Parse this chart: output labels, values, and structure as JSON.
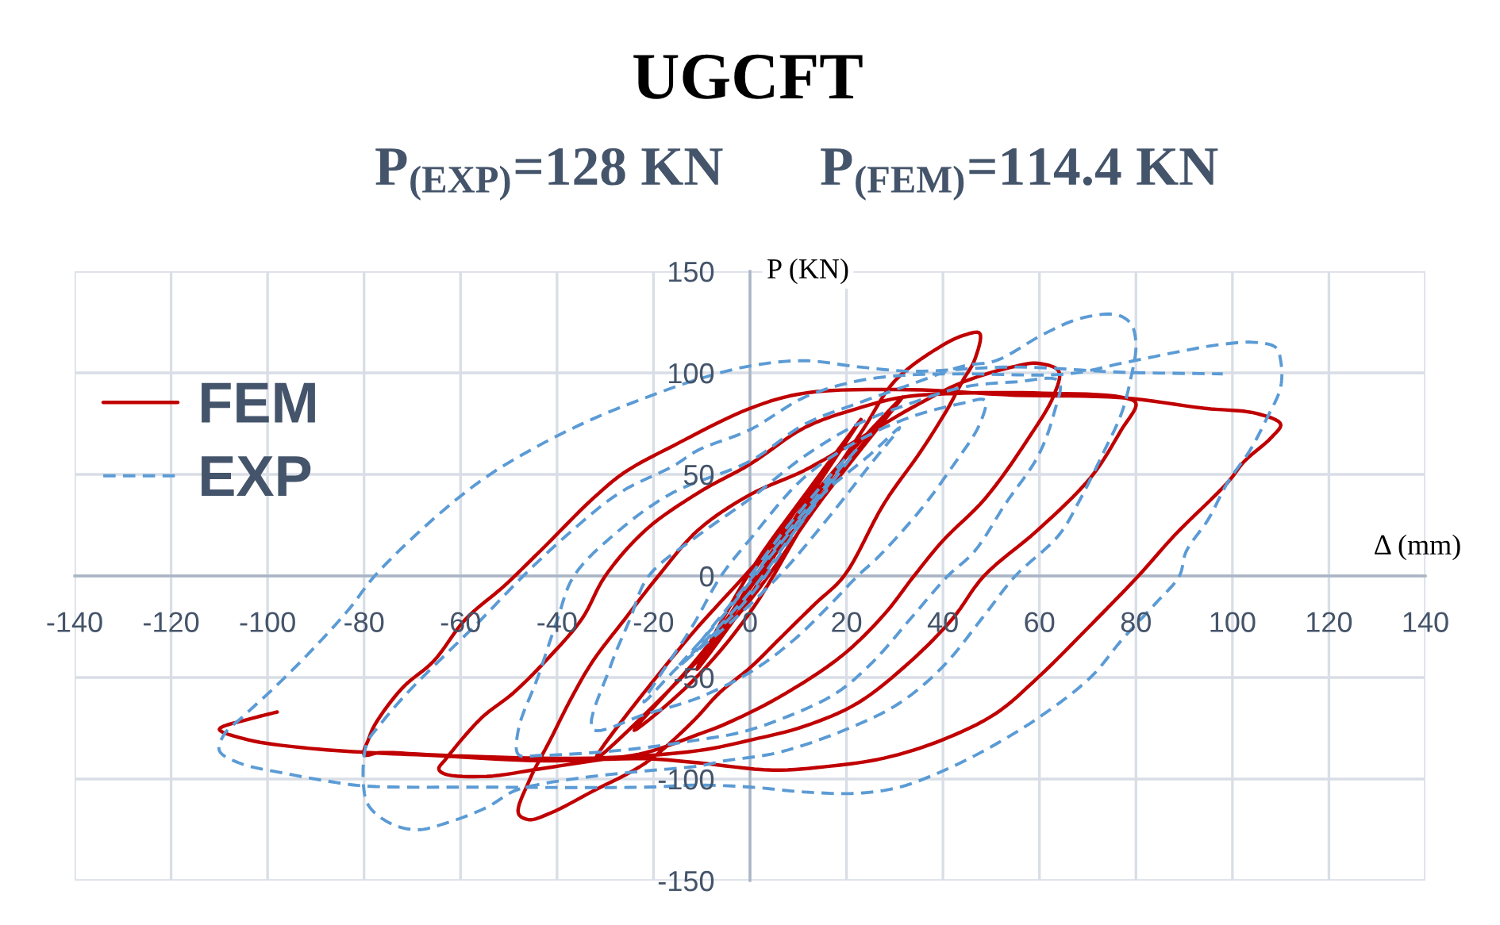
{
  "chart_data": {
    "type": "line",
    "title": "UGCFT",
    "subtitle": "P$_{(EXP)}$=128 KN       P$_{(FEM)}$=114.4 KN",
    "xlabel": "Δ (mm)",
    "ylabel": "P (KN)",
    "series": [
      {
        "name": "FEM",
        "color": "#c00000",
        "line_style": "solid",
        "x": [
          0,
          10,
          23,
          12,
          0,
          -11,
          0,
          12,
          23,
          10,
          0,
          -11,
          0,
          15,
          31.6,
          15,
          0,
          -12,
          -24,
          -10,
          5,
          20,
          31.6,
          15,
          0,
          -15,
          -32,
          -14,
          0,
          14.6,
          23.4,
          30,
          38.8,
          44.3,
          47.6,
          46.5,
          44.3,
          41,
          35.5,
          27.8,
          19.5,
          13.5,
          5.8,
          0.3,
          -6.3,
          -12,
          -21.6,
          -32.6,
          -41.4,
          -45.8,
          -48,
          -45.8,
          -41.4,
          -37,
          -32.6,
          -26,
          -19,
          -10.7,
          0,
          11.3,
          22.3,
          33.3,
          44.3,
          55.3,
          59.7,
          64,
          63,
          57.5,
          48.7,
          40,
          34,
          27.8,
          19,
          5.8,
          -5.2,
          -10.7,
          -21.6,
          -32.6,
          -43.6,
          -54.6,
          -63.4,
          -64.5,
          -63,
          -55.7,
          -49,
          -41.4,
          -34.8,
          -30,
          -21.6,
          -10.7,
          0,
          11.3,
          22.3,
          31.6,
          44,
          60.8,
          77,
          80,
          77,
          70.7,
          59.7,
          48.5,
          42,
          33.3,
          22.3,
          11.3,
          0.3,
          -10.7,
          -32.6,
          -63,
          -76.6,
          -80,
          -79,
          -77.7,
          -72,
          -65.6,
          -59,
          -51,
          -43.6,
          -32.6,
          -26,
          -16,
          0,
          11.3,
          33,
          55,
          77,
          94,
          105,
          110,
          108,
          102.5,
          99,
          88,
          80.5,
          70.7,
          59.7,
          50.9,
          39.9,
          27.8,
          16.8,
          4.7,
          -10.7,
          -21.6,
          -43.6,
          -65.6,
          -78.8,
          -93,
          -104,
          -110,
          -103,
          -98
        ],
        "values": [
          0,
          34,
          77,
          42,
          2,
          -46,
          -6,
          38,
          77,
          30,
          -10,
          -46,
          -4,
          45,
          88,
          40,
          -18,
          -52,
          -76,
          -38,
          10,
          55,
          88,
          38,
          -12,
          -52,
          -90,
          -34,
          3,
          42,
          72,
          96,
          112,
          118.5,
          119.5,
          106,
          97,
          82.5,
          61.7,
          35.7,
          0,
          -13.7,
          -31.7,
          -44.6,
          -57.5,
          -72,
          -92,
          -106,
          -116.8,
          -120,
          -117,
          -101,
          -80.7,
          -60,
          -42,
          -21.4,
          0,
          22.7,
          40,
          52,
          67,
          82.5,
          95.6,
          103.4,
          104.7,
          100.8,
          89,
          67,
          38,
          17.4,
          0,
          -19,
          -39.4,
          -60,
          -73,
          -78,
          -87,
          -91,
          -95,
          -98.7,
          -97.4,
          -95,
          -90,
          -70,
          -57.5,
          -39.4,
          -21,
          0,
          22.7,
          41,
          55,
          73,
          82.5,
          88,
          90,
          90,
          88,
          85,
          72,
          48.7,
          22.7,
          0,
          -21,
          -42,
          -62.6,
          -74,
          -80.7,
          -86,
          -89.7,
          -88.4,
          -87,
          -88,
          -80,
          -73,
          -55,
          -42,
          -21.4,
          -5,
          12,
          38,
          51,
          64,
          82.5,
          90,
          91.7,
          89,
          87.8,
          82.6,
          80,
          74.7,
          68,
          56.5,
          46,
          20,
          0,
          -24,
          -50,
          -67.8,
          -80.7,
          -89.7,
          -93.6,
          -95.6,
          -92,
          -90,
          -91,
          -88.4,
          -87,
          -84.5,
          -80.7,
          -75.5,
          -70,
          -67
        ]
      },
      {
        "name": "EXP",
        "color": "#5b9bd5",
        "line_style": "dashed",
        "x": [
          0,
          8,
          20,
          8,
          0,
          -12,
          0,
          10,
          22,
          10,
          0,
          -15,
          -5,
          5,
          15,
          25,
          31,
          25,
          15,
          6,
          -5,
          -15,
          -22,
          -12,
          -6,
          0,
          11,
          22,
          33,
          44,
          48.7,
          47.6,
          42,
          35.5,
          26.7,
          22.3,
          16.8,
          9,
          0.3,
          -10.7,
          -21.6,
          -32.6,
          -29,
          -25,
          -21,
          -10.7,
          0,
          11.3,
          22.3,
          33.3,
          44.3,
          55.3,
          64,
          63,
          59.7,
          53,
          46.5,
          41,
          33.3,
          25.6,
          18,
          8,
          -1.9,
          -10.7,
          -21.6,
          -32.6,
          -43.6,
          -48,
          -48,
          -44,
          -40,
          -36.5,
          -27,
          -16,
          0,
          11.3,
          22.3,
          33.3,
          44.3,
          51,
          60.8,
          68.5,
          76,
          79,
          80,
          79,
          77,
          72.9,
          68.5,
          64,
          55,
          48.7,
          40,
          31,
          20,
          5.8,
          -5.2,
          -10.7,
          -21.6,
          -32.6,
          -43.6,
          -49,
          -54.6,
          -63.4,
          -69,
          -74.4,
          -78.8,
          -80,
          -79.5,
          -76.6,
          -71,
          -63.4,
          -55.7,
          -47,
          -38,
          -27,
          -16,
          -10.7,
          0,
          11.3,
          22.3,
          33.3,
          44.3,
          66,
          77,
          88,
          97,
          104.7,
          109,
          110,
          110,
          107,
          103.6,
          99,
          95,
          90.4,
          89,
          84,
          77,
          70.7,
          59.7,
          48.7,
          40,
          31,
          22.3,
          11.3,
          0.3,
          -10.7,
          -21.6,
          -54.6,
          -80,
          -87.6,
          -96,
          -106,
          -110,
          -109,
          -105,
          -98.6,
          -91,
          -83,
          -77.8,
          -65.7,
          -54.7,
          -43.7,
          -32.6,
          -21.6,
          -10.7,
          0,
          11.3,
          22.3,
          33.3,
          55,
          77,
          98
        ],
        "values": [
          0,
          25,
          58,
          18,
          -8,
          -38,
          -2,
          28,
          62,
          24,
          -10,
          -45,
          -18,
          12,
          40,
          60,
          73,
          55,
          25,
          0,
          -25,
          -45,
          -62,
          -25,
          0,
          18,
          48,
          66,
          78,
          85,
          86.5,
          74.7,
          54,
          33,
          9.6,
          0,
          -13.7,
          -31.7,
          -47,
          -60,
          -68,
          -75.5,
          -45,
          -22,
          0,
          20,
          38,
          59,
          74.7,
          85,
          93,
          95.6,
          96,
          80,
          59,
          35.7,
          12,
          0,
          -21,
          -42,
          -57.5,
          -69,
          -77,
          -80.7,
          -84.5,
          -87,
          -88.4,
          -88,
          -75.5,
          -50,
          -22,
          0,
          22.7,
          41,
          56.5,
          74.7,
          85,
          94.3,
          103.4,
          106,
          119,
          126.8,
          128.6,
          124,
          113.8,
          98,
          80,
          59,
          38,
          20,
          0,
          -19,
          -44.6,
          -62.6,
          -75.5,
          -87,
          -91,
          -93.6,
          -96,
          -98.7,
          -102.6,
          -106,
          -114,
          -122,
          -125,
          -122,
          -114,
          -106,
          -83,
          -73,
          -57.5,
          -39.4,
          -21.4,
          0,
          20,
          41,
          54,
          62,
          72,
          88,
          96,
          99,
          99.5,
          99.5,
          104.7,
          110,
          113.8,
          115,
          112.5,
          106,
          93,
          77,
          61.7,
          46,
          27.9,
          12,
          0,
          -13.7,
          -31.7,
          -49.7,
          -70,
          -85.8,
          -96,
          -104,
          -107,
          -106.4,
          -104,
          -103,
          -104,
          -104,
          -103.4,
          -101,
          -97.4,
          -92,
          -86,
          -78,
          -69,
          -55,
          -37,
          -16,
          0,
          27.9,
          48.7,
          64.3,
          77.3,
          87.8,
          96.9,
          103.4,
          106,
          103,
          100.8,
          102.9,
          100.3,
          99.5
        ]
      }
    ],
    "xlim": [
      -140,
      140
    ],
    "ylim": [
      -150,
      150
    ],
    "xticks": [
      -140,
      -120,
      -100,
      -80,
      -60,
      -40,
      -20,
      0,
      20,
      40,
      60,
      80,
      100,
      120,
      140
    ],
    "yticks": [
      -150,
      -100,
      -50,
      0,
      50,
      100,
      150
    ],
    "grid": true,
    "legend": "upper left"
  }
}
